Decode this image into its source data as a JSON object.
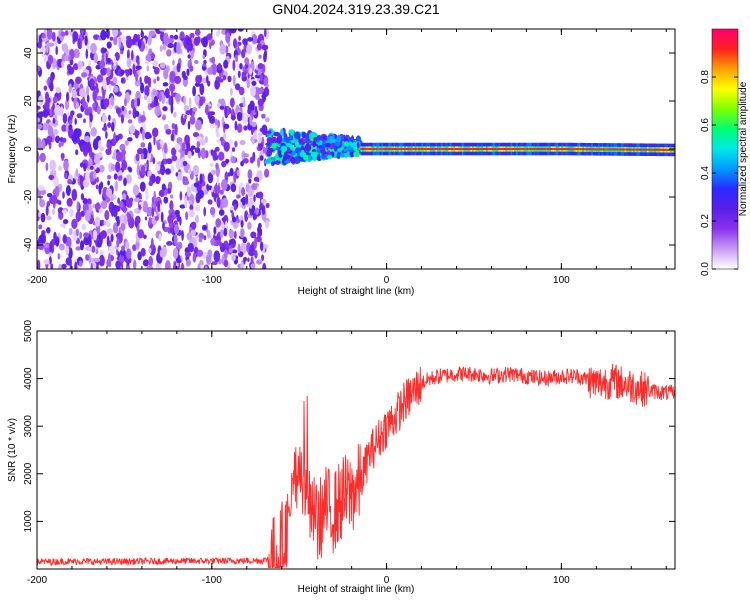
{
  "title": "GN04.2024.319.23.39.C21",
  "chart_data": [
    {
      "type": "heatmap",
      "xlabel": "Height of straight line (km)",
      "ylabel": "Frequency (Hz)",
      "xlim": [
        -200,
        165
      ],
      "ylim": [
        -50,
        50
      ],
      "xticks": [
        -200,
        -100,
        0,
        100
      ],
      "yticks": [
        -40,
        -20,
        0,
        20,
        40
      ],
      "colorbar": {
        "label": "Normalized spectral amplitude",
        "ticks": [
          0.0,
          0.2,
          0.4,
          0.6,
          0.8
        ],
        "range": [
          0,
          1
        ],
        "colors": [
          "#ffffff",
          "#c89cf4",
          "#8a32ee",
          "#5a1fe8",
          "#2a2aff",
          "#0098ff",
          "#00e8e8",
          "#00ff70",
          "#80ff00",
          "#ffff00",
          "#ffa000",
          "#ff2020",
          "#ff0070"
        ]
      },
      "regions": [
        {
          "x_range": [
            -200,
            -68
          ],
          "freq_range": [
            -50,
            50
          ],
          "amplitude": 0.15
        },
        {
          "x_range": [
            -68,
            -15
          ],
          "freq_range": [
            -7,
            8
          ],
          "amplitude": 0.45
        },
        {
          "x_range": [
            -15,
            165
          ],
          "freq_range": [
            -1.5,
            1.5
          ],
          "amplitude": 0.9
        }
      ]
    },
    {
      "type": "line",
      "xlabel": "Height of straight line (km)",
      "ylabel": "SNR (10 * v/v)",
      "xlim": [
        -200,
        165
      ],
      "ylim": [
        0,
        5000
      ],
      "xticks": [
        -200,
        -100,
        0,
        100
      ],
      "yticks": [
        1000,
        2000,
        3000,
        4000,
        5000
      ],
      "color": "#ff2a2a",
      "series": [
        {
          "x": [
            -200,
            -180,
            -160,
            -140,
            -120,
            -100,
            -80,
            -70,
            -62,
            -55,
            -50,
            -45,
            -40,
            -35,
            -30,
            -25,
            -20,
            -15,
            -10,
            -5,
            0,
            5,
            10,
            15,
            20,
            25,
            30,
            40,
            50,
            60,
            70,
            80,
            90,
            100,
            110,
            120,
            130,
            140,
            150,
            160,
            165
          ],
          "y": [
            150,
            160,
            155,
            160,
            165,
            170,
            175,
            180,
            300,
            1100,
            2200,
            1500,
            900,
            1300,
            1200,
            1500,
            1600,
            1800,
            2400,
            2700,
            3000,
            3200,
            3500,
            3700,
            3900,
            4000,
            4050,
            4100,
            4100,
            4050,
            4100,
            4050,
            4000,
            4050,
            4050,
            3900,
            3950,
            3850,
            3750,
            3700,
            3700
          ]
        }
      ]
    }
  ]
}
